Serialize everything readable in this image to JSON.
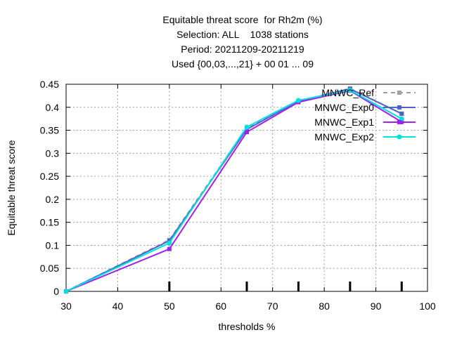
{
  "chart_data": {
    "type": "line",
    "title_lines": [
      "Equitable threat score  for Rh2m (%)",
      "Selection: ALL    1038 stations",
      "Period: 20211209-20211219",
      "Used {00,03,...,21} + 00 01 ... 09"
    ],
    "xlabel": "thresholds %",
    "ylabel": "Equitable threat score",
    "xlim": [
      30,
      100
    ],
    "ylim": [
      0,
      0.45
    ],
    "xticks": [
      30,
      40,
      50,
      60,
      70,
      80,
      90,
      100
    ],
    "yticks": [
      0,
      0.05,
      0.1,
      0.15,
      0.2,
      0.25,
      0.3,
      0.35,
      0.4,
      0.45
    ],
    "xtick_labels": [
      "30",
      "40",
      "50",
      "60",
      "70",
      "80",
      "90",
      "100"
    ],
    "ytick_labels": [
      "0",
      "0.05",
      "0.1",
      "0.15",
      "0.2",
      "0.25",
      "0.3",
      "0.35",
      "0.4",
      "0.45"
    ],
    "grid": true,
    "legend_position": "top-right",
    "threshold_marks": [
      50,
      65,
      75,
      85,
      95
    ],
    "series": [
      {
        "name": "MNWC_Ref",
        "color": "#a0a0a0",
        "dashed": true,
        "x": [
          30,
          50,
          65,
          75,
          85,
          95
        ],
        "y": [
          0.0,
          0.112,
          0.355,
          0.413,
          0.441,
          0.386
        ]
      },
      {
        "name": "MNWC_Exp0",
        "color": "#4b64c8",
        "dashed": false,
        "x": [
          30,
          50,
          65,
          75,
          85,
          95
        ],
        "y": [
          0.0,
          0.11,
          0.352,
          0.413,
          0.44,
          0.386
        ]
      },
      {
        "name": "MNWC_Exp1",
        "color": "#a020f0",
        "dashed": false,
        "x": [
          30,
          50,
          65,
          75,
          85,
          95
        ],
        "y": [
          0.0,
          0.092,
          0.346,
          0.411,
          0.436,
          0.368
        ]
      },
      {
        "name": "MNWC_Exp2",
        "color": "#00e0e0",
        "dashed": false,
        "x": [
          30,
          50,
          65,
          75,
          85,
          95
        ],
        "y": [
          0.0,
          0.105,
          0.357,
          0.415,
          0.437,
          0.375
        ]
      }
    ]
  }
}
